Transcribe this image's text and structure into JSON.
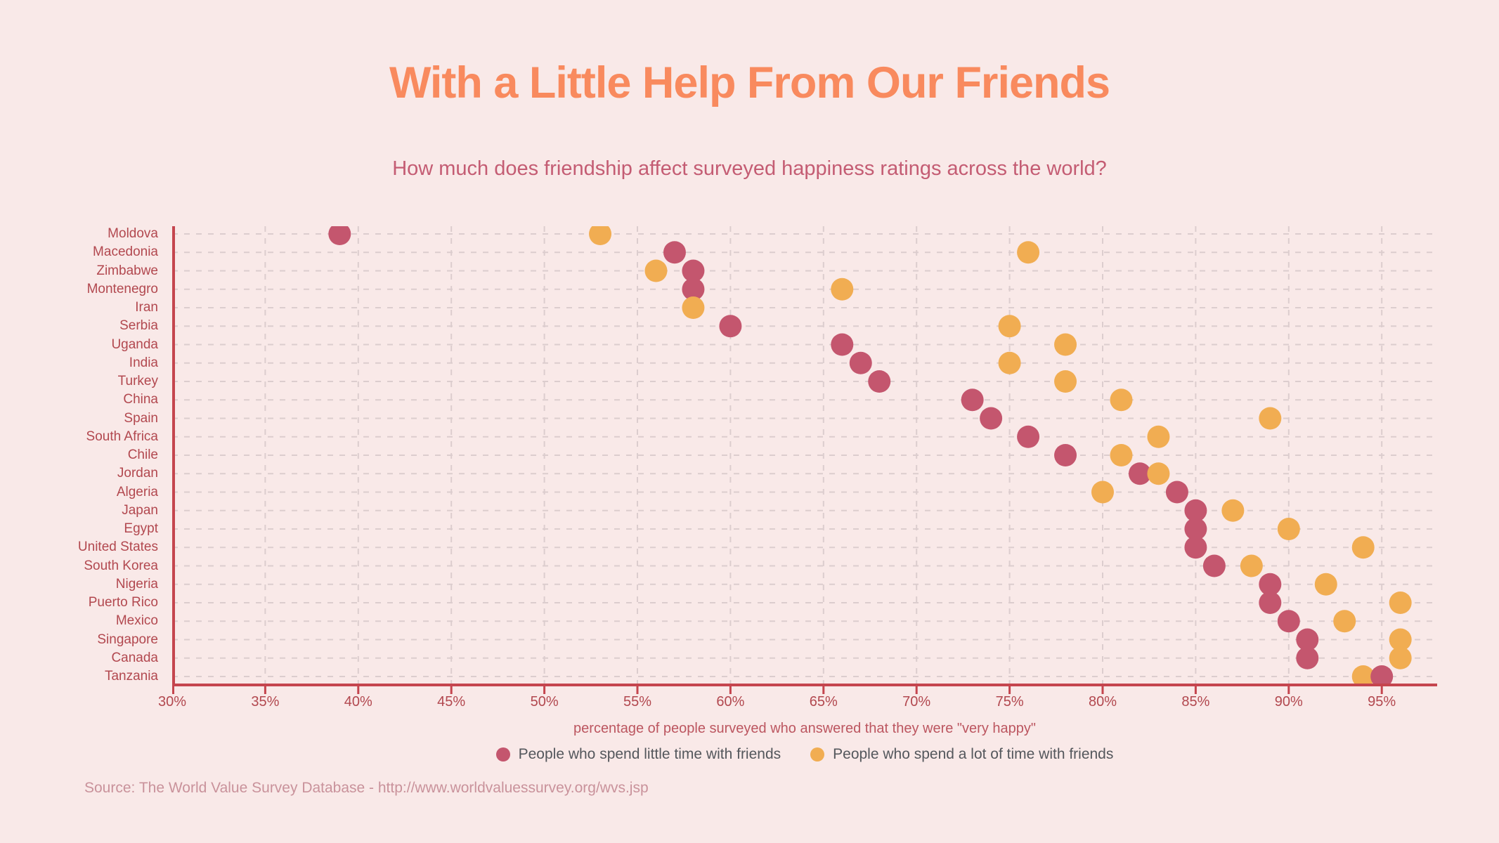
{
  "title": "With a Little Help From Our Friends",
  "subtitle": "How much does friendship affect surveyed happiness ratings across the world?",
  "source": "Source: The World Value Survey Database - http://www.worldvaluessurvey.org/wvs.jsp",
  "colors": {
    "bg": "#f9e9e8",
    "title": "#f98a5e",
    "subtitle": "#c45c73",
    "axis_line": "#c5454e",
    "axis_label": "#b2484f",
    "grid": "#dccdce",
    "legend_text": "#54575c",
    "source_text": "#c9929b",
    "xtitle": "#bc5660"
  },
  "chart_data": {
    "type": "scatter",
    "title": "With a Little Help From Our Friends",
    "subtitle": "How much does friendship affect surveyed happiness ratings across the world?",
    "xlabel": "percentage of people surveyed who answered that they were \"very happy\"",
    "ylabel": "",
    "x_min": 30,
    "x_max": 98,
    "x_tick_step": 5,
    "grid": "dashed",
    "legend_position": "bottom",
    "x_ticks": [
      "30%",
      "35%",
      "40%",
      "45%",
      "50%",
      "55%",
      "60%",
      "65%",
      "70%",
      "75%",
      "80%",
      "85%",
      "90%",
      "95%"
    ],
    "legend": [
      {
        "key": "little",
        "label": "People who spend little time with friends",
        "color": "#c4566e"
      },
      {
        "key": "lot",
        "label": "People who spend a lot of time with friends",
        "color": "#f1ad52"
      }
    ],
    "countries": [
      "Moldova",
      "Macedonia",
      "Zimbabwe",
      "Montenegro",
      "Iran",
      "Serbia",
      "Uganda",
      "India",
      "Turkey",
      "China",
      "Spain",
      "South Africa",
      "Chile",
      "Jordan",
      "Algeria",
      "Japan",
      "Egypt",
      "United States",
      "South Korea",
      "Nigeria",
      "Puerto Rico",
      "Mexico",
      "Singapore",
      "Canada",
      "Tanzania"
    ],
    "points": [
      {
        "country": "Moldova",
        "little": 39,
        "lot": 53
      },
      {
        "country": "Macedonia",
        "little": 57,
        "lot": 76
      },
      {
        "country": "Zimbabwe",
        "little": 58,
        "lot": 56
      },
      {
        "country": "Montenegro",
        "little": 58,
        "lot": 66
      },
      {
        "country": "Iran",
        "little": null,
        "lot": 58
      },
      {
        "country": "Serbia",
        "little": 60,
        "lot": 75
      },
      {
        "country": "Uganda",
        "little": 66,
        "lot": 78
      },
      {
        "country": "India",
        "little": 67,
        "lot": 75
      },
      {
        "country": "Turkey",
        "little": 68,
        "lot": 78
      },
      {
        "country": "China",
        "little": 73,
        "lot": 81
      },
      {
        "country": "Spain",
        "little": 74,
        "lot": 89
      },
      {
        "country": "South Africa",
        "little": 76,
        "lot": 83
      },
      {
        "country": "Chile",
        "little": 78,
        "lot": 81
      },
      {
        "country": "Jordan",
        "little": 82,
        "lot": 83
      },
      {
        "country": "Algeria",
        "little": 84,
        "lot": 80
      },
      {
        "country": "Japan",
        "little": 85,
        "lot": 87
      },
      {
        "country": "Egypt",
        "little": 85,
        "lot": 90
      },
      {
        "country": "United States",
        "little": 85,
        "lot": 94
      },
      {
        "country": "South Korea",
        "little": 86,
        "lot": 88
      },
      {
        "country": "Nigeria",
        "little": 89,
        "lot": 92
      },
      {
        "country": "Puerto Rico",
        "little": 89,
        "lot": 96
      },
      {
        "country": "Mexico",
        "little": 90,
        "lot": 93
      },
      {
        "country": "Singapore",
        "little": 91,
        "lot": 96
      },
      {
        "country": "Canada",
        "little": 91,
        "lot": 96
      },
      {
        "country": "Tanzania",
        "little": 95,
        "lot": 94
      }
    ]
  }
}
